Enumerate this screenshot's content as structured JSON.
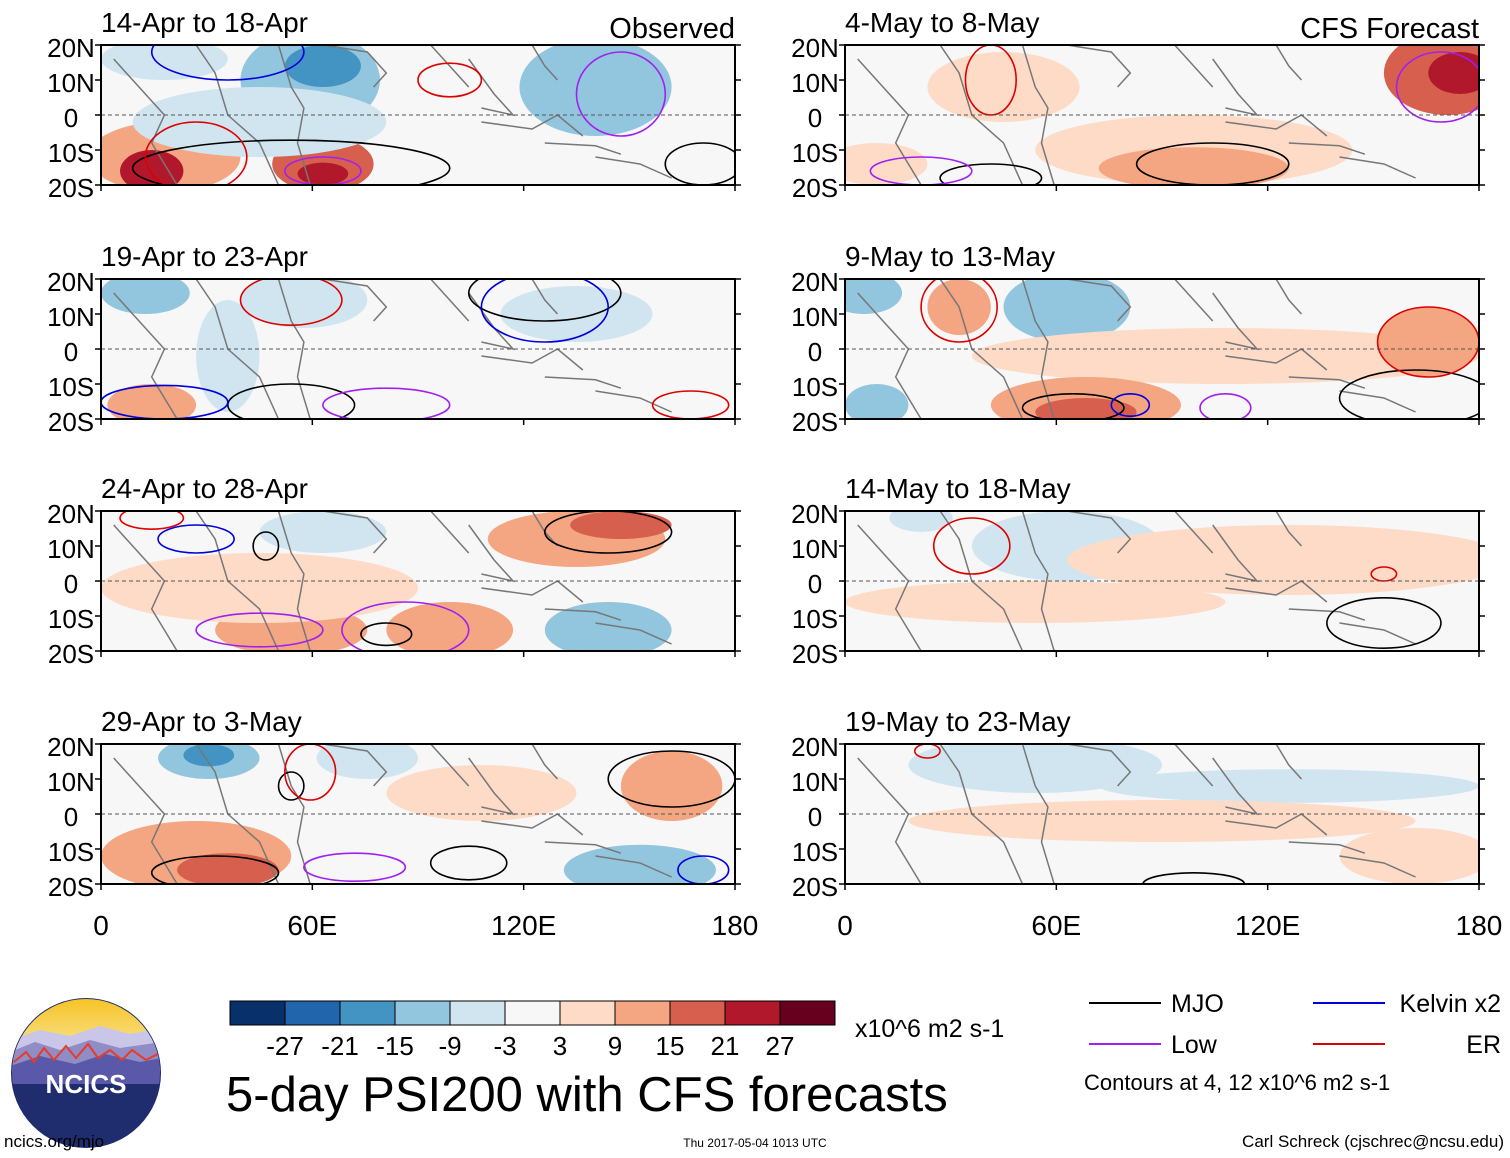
{
  "title": "5-day PSI200 with CFS forecasts",
  "left_column_label": "Observed",
  "right_column_label": "CFS Forecast",
  "panels_observed": [
    {
      "date_range": "14-Apr to 18-Apr"
    },
    {
      "date_range": "19-Apr to 23-Apr"
    },
    {
      "date_range": "24-Apr to 28-Apr"
    },
    {
      "date_range": "29-Apr to 3-May"
    }
  ],
  "panels_forecast": [
    {
      "date_range": "4-May to 8-May"
    },
    {
      "date_range": "9-May to 13-May"
    },
    {
      "date_range": "14-May to 18-May"
    },
    {
      "date_range": "19-May to 23-May"
    }
  ],
  "lat_labels": [
    "20N",
    "10N",
    "0",
    "10S",
    "20S"
  ],
  "lon_labels": [
    "0",
    "60E",
    "120E",
    "180"
  ],
  "colorbar": {
    "colors": [
      "#08306b",
      "#2166ac",
      "#4393c3",
      "#92c5de",
      "#d1e5f0",
      "#f7f7f7",
      "#fddbc7",
      "#f4a582",
      "#d6604d",
      "#b2182b",
      "#67001f"
    ],
    "ticks": [
      "-27",
      "-21",
      "-15",
      "-9",
      "-3",
      "3",
      "9",
      "15",
      "21",
      "27"
    ],
    "units": "x10^6 m2 s-1"
  },
  "legend": {
    "items": [
      {
        "label": "MJO",
        "color": "#000000"
      },
      {
        "label": "Kelvin x2",
        "color": "#0000dd"
      },
      {
        "label": "Low",
        "color": "#a020f0"
      },
      {
        "label": "ER",
        "color": "#dd0000"
      }
    ],
    "contours_note": "Contours at 4, 12 x10^6 m2 s-1"
  },
  "logo_text": "NCICS",
  "footer": {
    "url": "ncics.org/mjo",
    "timestamp": "Thu 2017-05-04 1013 UTC",
    "credit": "Carl Schreck (cjschrec@ncsu.edu)"
  }
}
